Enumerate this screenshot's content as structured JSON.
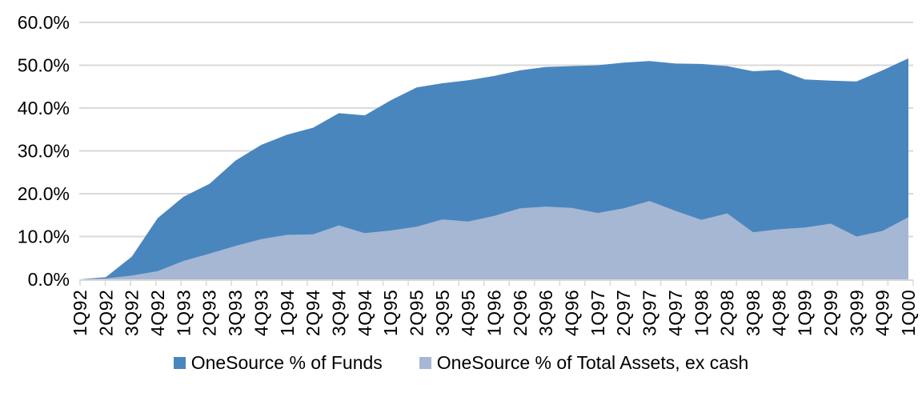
{
  "chart_data": {
    "type": "area",
    "title": "",
    "categories": [
      "1Q92",
      "2Q92",
      "3Q92",
      "4Q92",
      "1Q93",
      "2Q93",
      "3Q93",
      "4Q93",
      "1Q94",
      "2Q94",
      "3Q94",
      "4Q94",
      "1Q95",
      "2Q95",
      "3Q95",
      "4Q95",
      "1Q96",
      "2Q96",
      "3Q96",
      "4Q96",
      "1Q97",
      "2Q97",
      "3Q97",
      "4Q97",
      "1Q98",
      "2Q98",
      "3Q98",
      "4Q98",
      "1Q99",
      "2Q99",
      "3Q99",
      "4Q99",
      "1Q00"
    ],
    "series": [
      {
        "name": "OneSource % of Funds",
        "color": "#4a86be",
        "values": [
          0.0,
          0.5,
          5.3,
          14.3,
          19.3,
          22.3,
          27.7,
          31.4,
          33.8,
          35.4,
          38.8,
          38.3,
          41.8,
          44.8,
          45.8,
          46.5,
          47.5,
          48.8,
          49.6,
          49.8,
          50.0,
          50.6,
          51.0,
          50.4,
          50.3,
          49.8,
          48.6,
          48.9,
          46.7,
          46.4,
          46.2,
          48.8,
          51.6
        ]
      },
      {
        "name": "OneSource % of Total Assets, ex cash",
        "color": "#a6b7d3",
        "values": [
          0.0,
          0.2,
          0.9,
          1.9,
          4.3,
          6.0,
          7.8,
          9.4,
          10.4,
          10.5,
          12.6,
          10.8,
          11.4,
          12.3,
          14.0,
          13.5,
          14.8,
          16.6,
          17.0,
          16.7,
          15.5,
          16.6,
          18.3,
          16.0,
          13.9,
          15.4,
          11.0,
          11.7,
          12.1,
          13.0,
          10.0,
          11.3,
          14.5
        ]
      }
    ],
    "ylim": [
      0,
      60
    ],
    "ytick_step": 10,
    "ytick_labels": [
      "0.0%",
      "10.0%",
      "20.0%",
      "30.0%",
      "40.0%",
      "50.0%",
      "60.0%"
    ],
    "xlabel": "",
    "ylabel": "",
    "grid": "horizontal",
    "legend_position": "bottom",
    "x_label_rotation_deg": -90
  },
  "colors": {
    "background": "#ffffff",
    "gridline": "#d9d9d9",
    "axis": "#d9d9d9",
    "tick": "#d9d9d9",
    "text": "#000000"
  },
  "legend": {
    "items": [
      {
        "label": "OneSource % of Funds",
        "color": "#4a86be"
      },
      {
        "label": "OneSource % of Total Assets, ex cash",
        "color": "#a6b7d3"
      }
    ]
  }
}
